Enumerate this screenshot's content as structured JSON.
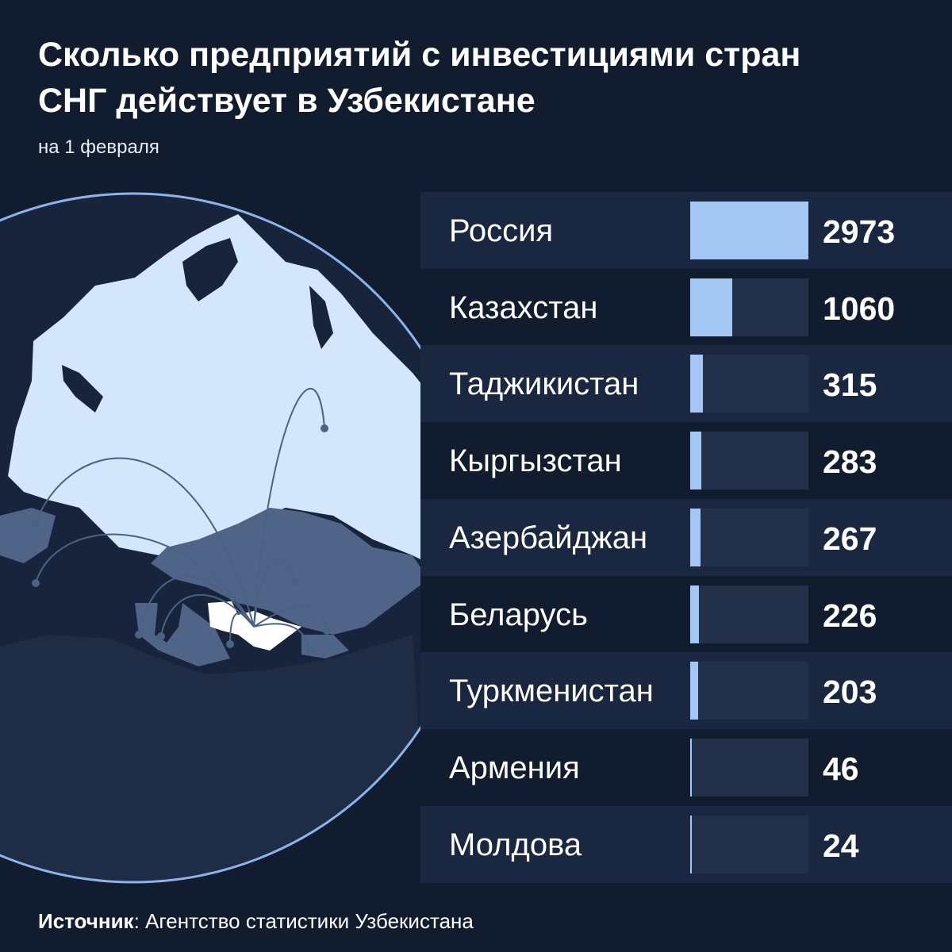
{
  "header": {
    "title": "Сколько предприятий с инвестициями стран СНГ действует в Узбекистане",
    "subtitle": "на 1 февраля"
  },
  "footer": {
    "source_label": "Источник",
    "source_text": ": Агентство статистики Узбекистана"
  },
  "colors": {
    "background": "#111c2e",
    "row_alt": "#1a2740",
    "bar": "#a3c6f2",
    "track": "#233049",
    "globe_land": "#d3e6fb",
    "globe_ocean": "#17243b",
    "cis_region": "#4f6487",
    "uzbekistan": "#ffffff"
  },
  "chart_data": {
    "type": "bar",
    "orientation": "horizontal",
    "title": "Сколько предприятий с инвестициями стран СНГ действует в Узбекистане",
    "subtitle": "на 1 февраля",
    "categories": [
      "Россия",
      "Казахстан",
      "Таджикистан",
      "Кыргызстан",
      "Азербайджан",
      "Беларусь",
      "Туркменистан",
      "Армения",
      "Молдова"
    ],
    "values": [
      2973,
      1060,
      315,
      283,
      267,
      226,
      203,
      46,
      24
    ],
    "xlim": [
      0,
      2973
    ],
    "grid": false,
    "legend": "none"
  }
}
